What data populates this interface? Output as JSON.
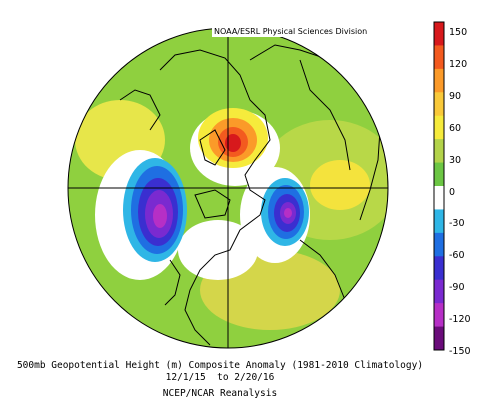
{
  "credit": "NOAA/ESRL Physical Sciences Division",
  "caption": {
    "line1": "500mb Geopotential Height (m) Composite Anomaly (1981-2010 Climatology)",
    "line2": "12/1/15  to 2/20/16",
    "line3": "NCEP/NCAR Reanalysis"
  },
  "colorbar": {
    "ticks": [
      "150",
      "120",
      "90",
      "60",
      "30",
      "0",
      "-30",
      "-60",
      "-90",
      "-120",
      "-150"
    ],
    "colors": [
      "#d7191c",
      "#f35a1f",
      "#fb9a29",
      "#f9c93a",
      "#f6eb3c",
      "#b3d34a",
      "#6cc644",
      "#ffffff",
      "#2fb6e6",
      "#1f6fe2",
      "#3a2fd0",
      "#7a2ad0",
      "#b62fc6",
      "#6a0c7a"
    ]
  },
  "map": {
    "projection": "north-polar-stereographic",
    "anomalies": [
      {
        "name": "positive-anomaly-arctic",
        "value": 150
      },
      {
        "name": "negative-anomaly-north-pacific",
        "value": -130
      },
      {
        "name": "negative-anomaly-north-atlantic",
        "value": -120
      },
      {
        "name": "positive-anomaly-eurasia",
        "value": 60
      },
      {
        "name": "positive-anomaly-east-pacific",
        "value": 60
      }
    ]
  }
}
